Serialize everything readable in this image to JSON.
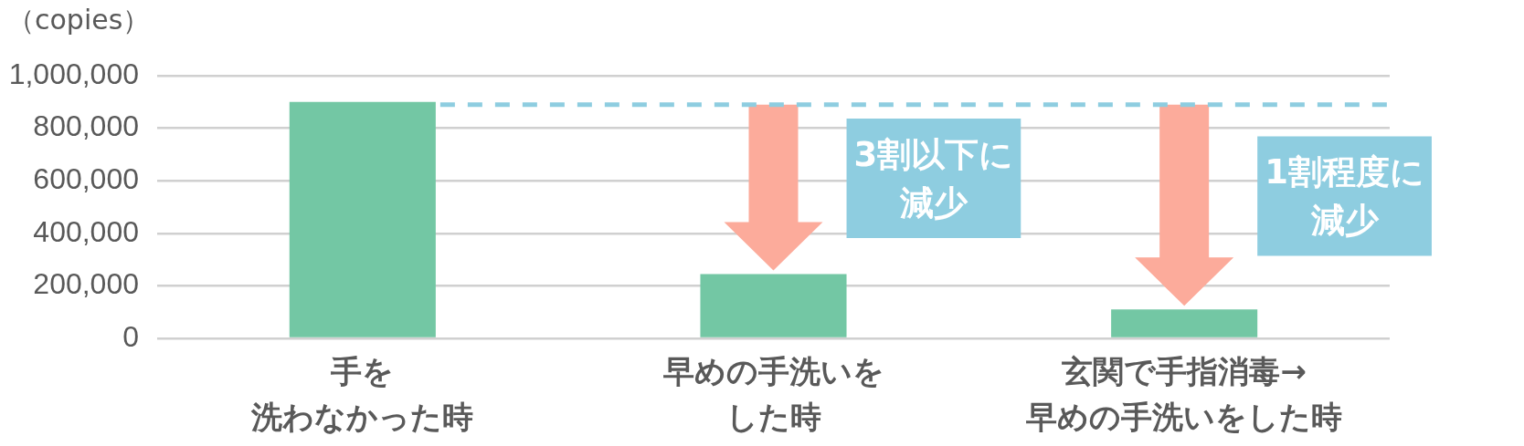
{
  "chart_data": {
    "type": "bar",
    "ylabel": "（copies）",
    "categories": [
      "手を洗わなかった時",
      "早めの手洗いをした時",
      "玄関で手指消毒→早めの手洗いをした時"
    ],
    "values": [
      900000,
      245000,
      110000
    ],
    "color": "#73c7a4",
    "ylim": [
      0,
      1000000
    ],
    "yticks": [
      0,
      {
        "value": 200000,
        "label": "200,000"
      },
      {
        "value": 400000,
        "label": "400,000"
      },
      {
        "value": 600000,
        "label": "600,000"
      },
      {
        "value": 800000,
        "label": "800,000"
      },
      {
        "value": 1000000,
        "label": "1,000,000"
      }
    ],
    "grid": "y",
    "ref_lines": [
      {
        "axis": "y",
        "value": 890000,
        "color": "#8ecde0",
        "line_style": "dashed"
      }
    ],
    "annotations": [
      "3割以下に減少",
      "1割程度に減少"
    ]
  }
}
